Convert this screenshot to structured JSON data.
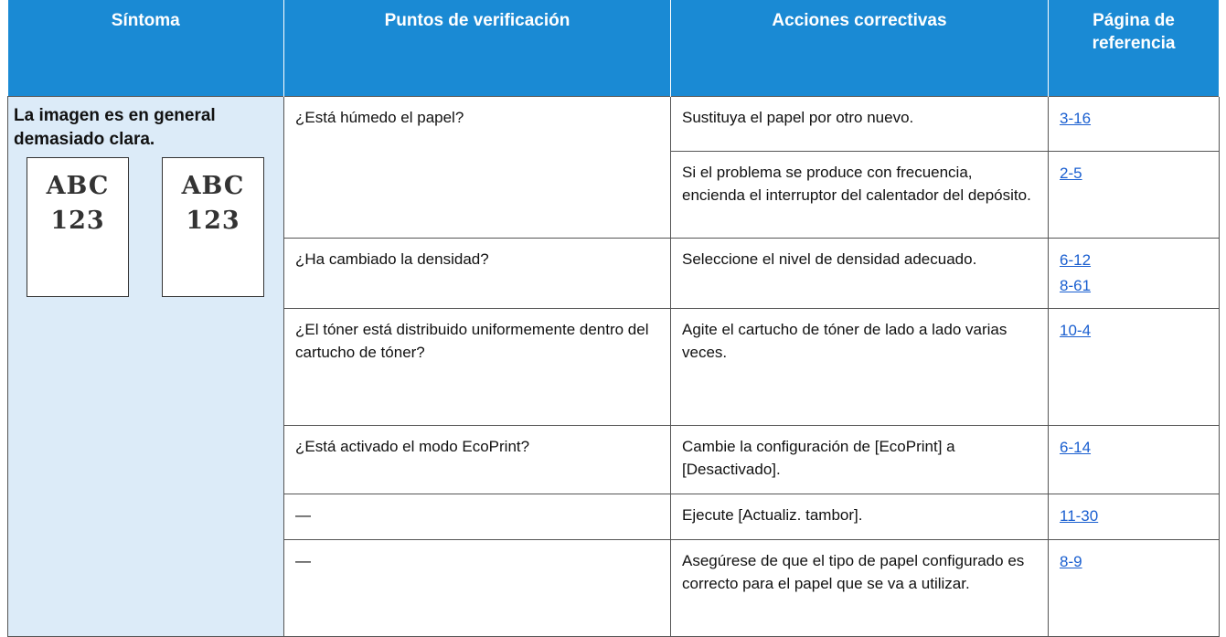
{
  "header": [
    "Síntoma",
    "Puntos de verificación",
    "Acciones correctivas",
    "Página de referencia"
  ],
  "symptom": {
    "text": "La imagen es en general demasiado clara.",
    "samples": [
      [
        "ABC",
        "123"
      ],
      [
        "ABC",
        "123"
      ]
    ]
  },
  "rows": [
    {
      "check": "¿Está húmedo el papel?",
      "actions": [
        {
          "text": "Sustituya el papel por otro nuevo.",
          "refs": [
            "3-16"
          ]
        },
        {
          "text": "Si el problema se produce con frecuencia, encienda el interruptor del calentador del depósito.",
          "refs": [
            "2-5"
          ]
        }
      ]
    },
    {
      "check": "¿Ha cambiado la densidad?",
      "actions": [
        {
          "text": "Seleccione el nivel de densidad adecuado.",
          "refs": [
            "6-12",
            "8-61"
          ]
        }
      ]
    },
    {
      "check": "¿El tóner está distribuido uniformemente dentro del cartucho de tóner?",
      "actions": [
        {
          "text": "Agite el cartucho de tóner de lado a lado varias veces.",
          "refs": [
            "10-4"
          ]
        }
      ]
    },
    {
      "check": "¿Está activado el modo EcoPrint?",
      "actions": [
        {
          "text": "Cambie la configuración de [EcoPrint] a [Desactivado].",
          "refs": [
            "6-14"
          ]
        }
      ]
    },
    {
      "check": "—",
      "actions": [
        {
          "text": "Ejecute [Actualiz. tambor].",
          "refs": [
            "11-30"
          ]
        }
      ]
    },
    {
      "check": "—",
      "actions": [
        {
          "text": "Asegúrese de que el tipo de papel configurado es correcto para el papel que se va a utilizar.",
          "refs": [
            "8-9"
          ]
        }
      ]
    }
  ]
}
